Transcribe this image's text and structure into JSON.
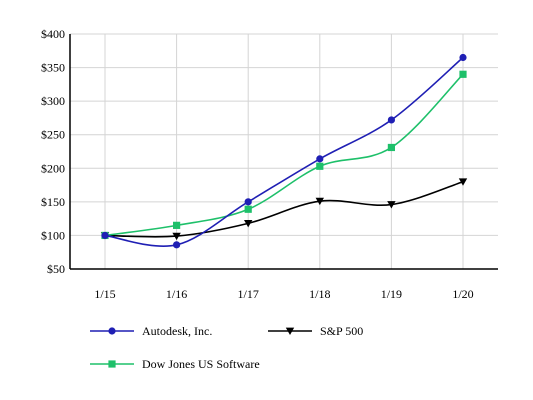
{
  "chart_data": {
    "type": "line",
    "categories": [
      "1/15",
      "1/16",
      "1/17",
      "1/18",
      "1/19",
      "1/20"
    ],
    "ylim": [
      50,
      400
    ],
    "yticks": [
      50,
      100,
      150,
      200,
      250,
      300,
      350,
      400
    ],
    "ytick_labels": [
      "$50",
      "$100",
      "$150",
      "$200",
      "$250",
      "$300",
      "$350",
      "$400"
    ],
    "grid": true,
    "legend_position": "bottom",
    "series": [
      {
        "name": "Autodesk, Inc.",
        "values": [
          100,
          86,
          150,
          214,
          272,
          365
        ],
        "color": "#1f1fb4",
        "marker": "circle"
      },
      {
        "name": "S&P 500",
        "values": [
          100,
          99,
          118,
          151,
          146,
          180
        ],
        "color": "#000000",
        "marker": "triangle-down"
      },
      {
        "name": "Dow Jones US Software",
        "values": [
          100,
          115,
          139,
          203,
          231,
          340
        ],
        "color": "#1ec06a",
        "marker": "square"
      }
    ]
  }
}
